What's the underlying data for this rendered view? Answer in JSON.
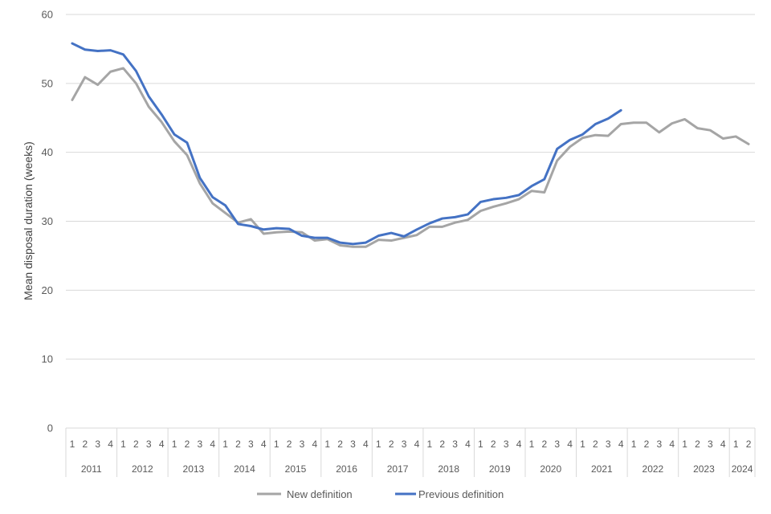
{
  "chart_data": {
    "type": "line",
    "ylabel": "Mean disposal duration (weeks)",
    "xlabel": "",
    "ylim": [
      0,
      60
    ],
    "yticks": [
      0,
      10,
      20,
      30,
      40,
      50,
      60
    ],
    "grid": true,
    "legend_position": "bottom",
    "quarter_labels": [
      "1",
      "2",
      "3",
      "4"
    ],
    "years": [
      "2011",
      "2012",
      "2013",
      "2014",
      "2015",
      "2016",
      "2017",
      "2018",
      "2019",
      "2020",
      "2021",
      "2022",
      "2023",
      "2024"
    ],
    "quarters_per_year": [
      4,
      4,
      4,
      4,
      4,
      4,
      4,
      4,
      4,
      4,
      4,
      4,
      4,
      2
    ],
    "series": [
      {
        "name": "New definition",
        "color": "#a5a5a5",
        "values": [
          47.6,
          50.9,
          49.8,
          51.7,
          52.2,
          50.0,
          46.6,
          44.4,
          41.6,
          39.6,
          35.5,
          32.6,
          31.2,
          29.8,
          30.3,
          28.2,
          28.4,
          28.5,
          28.4,
          27.2,
          27.4,
          26.5,
          26.3,
          26.3,
          27.3,
          27.2,
          27.6,
          28.0,
          29.2,
          29.2,
          29.8,
          30.2,
          31.5,
          32.1,
          32.6,
          33.2,
          34.4,
          34.2,
          38.8,
          40.8,
          42.1,
          42.5,
          42.4,
          44.1,
          44.3,
          44.3,
          42.9,
          44.2,
          44.8,
          43.5,
          43.2,
          42.0,
          42.3,
          41.2
        ]
      },
      {
        "name": "Previous definition",
        "color": "#4472c4",
        "values": [
          55.8,
          54.9,
          54.7,
          54.8,
          54.2,
          51.8,
          48.1,
          45.5,
          42.6,
          41.4,
          36.3,
          33.5,
          32.3,
          29.6,
          29.3,
          28.8,
          29.0,
          28.9,
          27.9,
          27.6,
          27.6,
          26.9,
          26.7,
          26.9,
          27.9,
          28.3,
          27.8,
          28.8,
          29.7,
          30.4,
          30.6,
          31.0,
          32.8,
          33.2,
          33.4,
          33.8,
          35.1,
          36.1,
          40.5,
          41.8,
          42.6,
          44.1,
          44.9,
          46.1
        ]
      }
    ]
  }
}
